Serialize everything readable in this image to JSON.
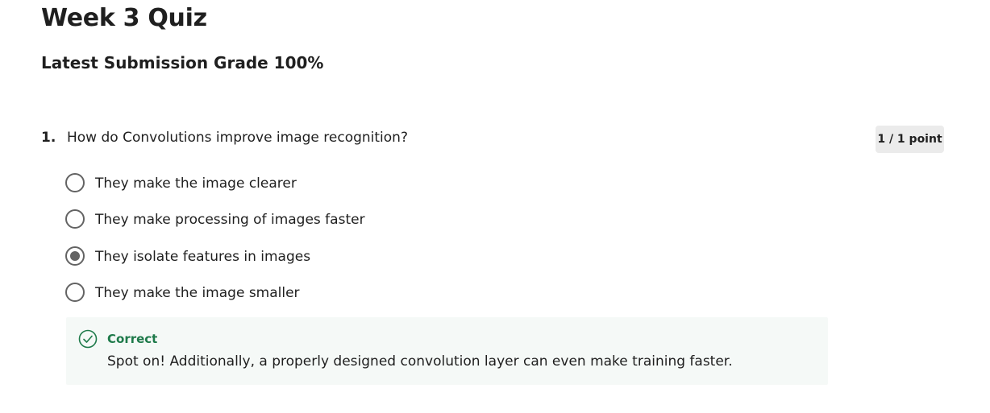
{
  "quiz": {
    "title": "Week 3 Quiz",
    "grade": "Latest Submission Grade 100%"
  },
  "question": {
    "number": "1.",
    "text": "How do Convolutions improve image recognition?",
    "points": "1 / 1 point",
    "options": [
      {
        "label": "They make the image clearer",
        "selected": false
      },
      {
        "label": "They make processing of images faster",
        "selected": false
      },
      {
        "label": "They isolate features in images",
        "selected": true
      },
      {
        "label": "They make the image smaller",
        "selected": false
      }
    ],
    "feedback": {
      "status": "Correct",
      "icon": "check-circle-icon",
      "message": "Spot on! Additionally, a properly designed convolution layer can even make training faster."
    }
  },
  "colors": {
    "correct": "#1e7a4a",
    "feedback_background": "#f5f9f7",
    "badge_background": "#ebebeb",
    "radio": "#636363"
  }
}
